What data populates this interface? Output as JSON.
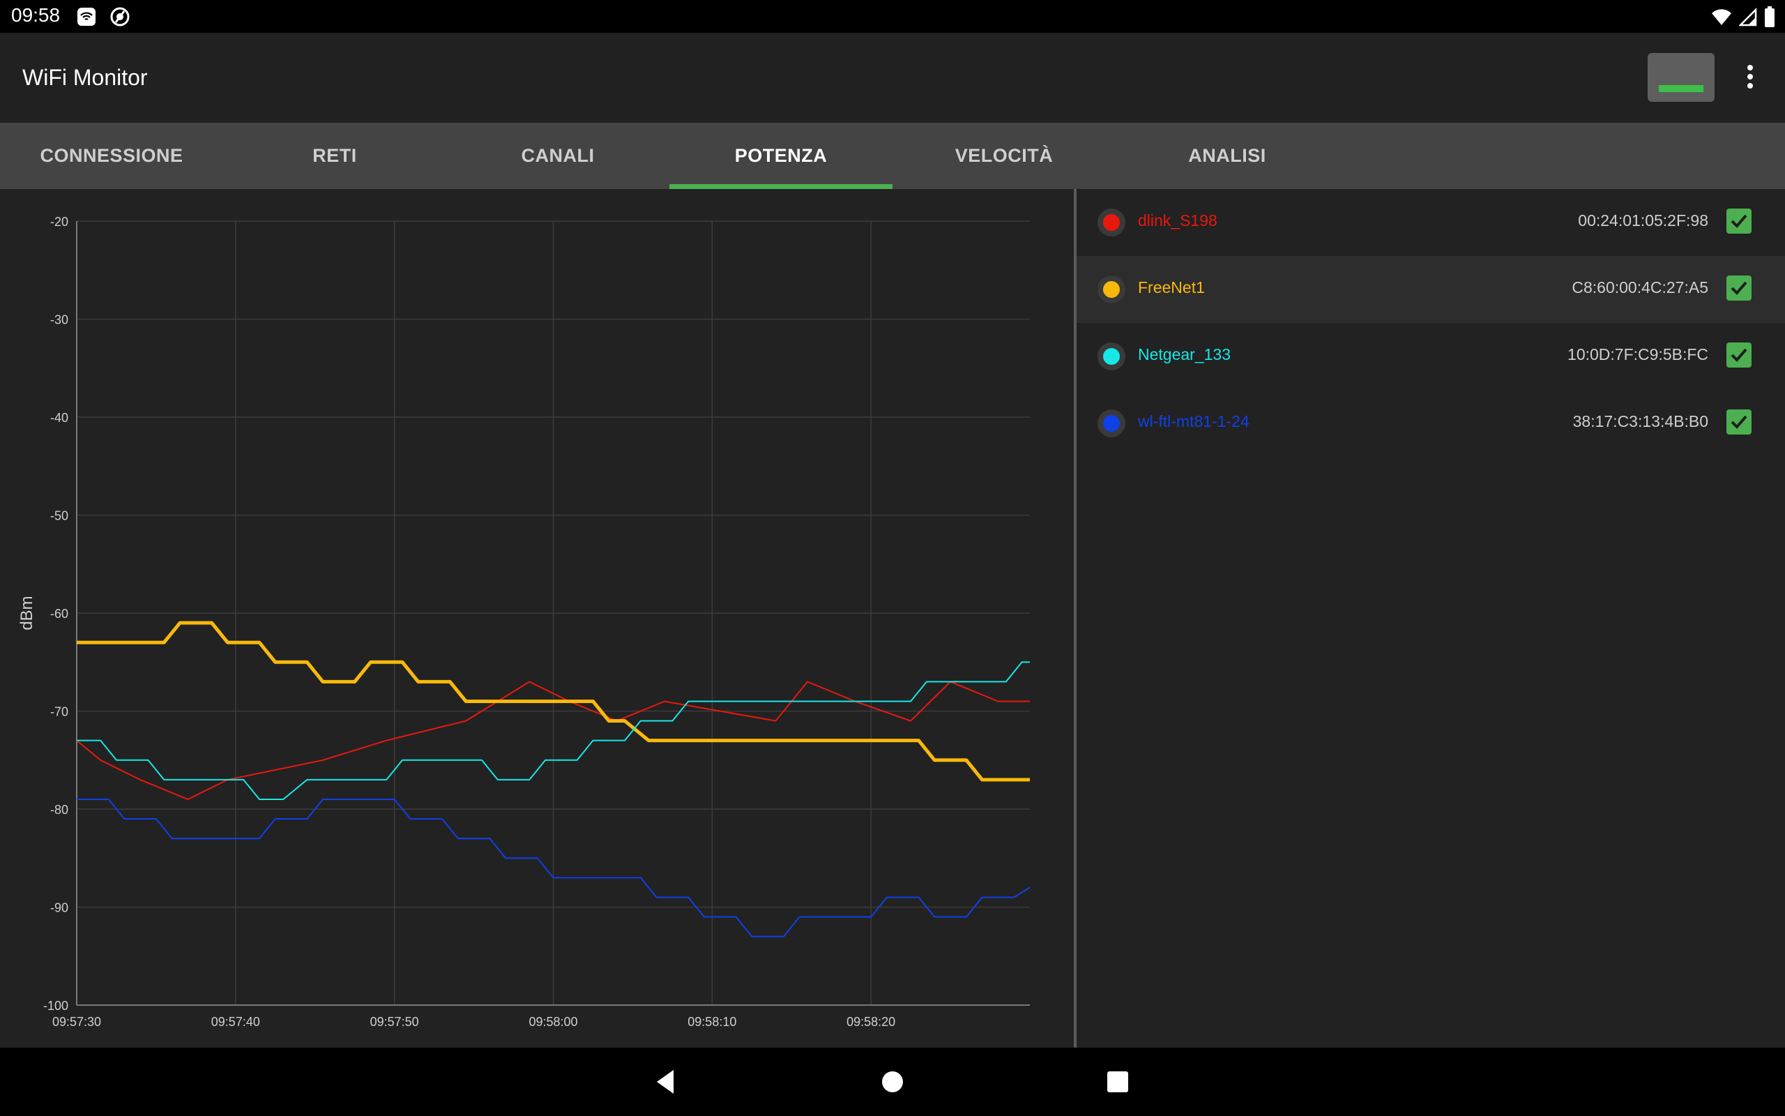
{
  "status_bar": {
    "time": "09:58"
  },
  "app_bar": {
    "title": "WiFi Monitor"
  },
  "tabs": [
    {
      "label": "CONNESSIONE"
    },
    {
      "label": "RETI"
    },
    {
      "label": "CANALI"
    },
    {
      "label": "POTENZA",
      "active": true
    },
    {
      "label": "VELOCITÀ"
    },
    {
      "label": "ANALISI"
    }
  ],
  "networks": [
    {
      "name": "dlink_S198",
      "mac": "00:24:01:05:2F:98",
      "color": "#e8180e",
      "checked": true
    },
    {
      "name": "FreeNet1",
      "mac": "C8:60:00:4C:27:A5",
      "color": "#f8b90c",
      "checked": true
    },
    {
      "name": "Netgear_133",
      "mac": "10:0D:7F:C9:5B:FC",
      "color": "#16e8e8",
      "checked": true
    },
    {
      "name": "wl-ftl-mt81-1-24",
      "mac": "38:17:C3:13:4B:B0",
      "color": "#1040e8",
      "checked": true
    }
  ],
  "chart_data": {
    "type": "line",
    "ylabel": "dBm",
    "xlabel": "",
    "ylim": [
      -100,
      -20
    ],
    "yticks": [
      "-20",
      "-30",
      "-40",
      "-50",
      "-60",
      "-70",
      "-80",
      "-90",
      "-100"
    ],
    "xticks": [
      "09:57:30",
      "09:57:40",
      "09:57:50",
      "09:58:00",
      "09:58:10",
      "09:58:20"
    ],
    "grid": true,
    "series": [
      {
        "name": "dlink_S198",
        "color": "#e8180e",
        "width": 2,
        "points": [
          [
            0,
            -73
          ],
          [
            1.5,
            -75
          ],
          [
            4,
            -77
          ],
          [
            7,
            -79
          ],
          [
            9.5,
            -77
          ],
          [
            15.5,
            -75
          ],
          [
            19.5,
            -73
          ],
          [
            24.5,
            -71
          ],
          [
            28.5,
            -67
          ],
          [
            31,
            -69
          ],
          [
            34,
            -71
          ],
          [
            37,
            -69
          ],
          [
            44,
            -71
          ],
          [
            46,
            -67
          ],
          [
            49,
            -69
          ],
          [
            52.5,
            -71
          ],
          [
            55,
            -67
          ],
          [
            58,
            -69
          ],
          [
            60,
            -69
          ]
        ]
      },
      {
        "name": "FreeNet1",
        "color": "#f8b90c",
        "width": 5,
        "points": [
          [
            0,
            -63
          ],
          [
            5.5,
            -63
          ],
          [
            6.5,
            -61
          ],
          [
            8.5,
            -61
          ],
          [
            9.5,
            -63
          ],
          [
            11.5,
            -63
          ],
          [
            12.5,
            -65
          ],
          [
            14.5,
            -65
          ],
          [
            15.5,
            -67
          ],
          [
            17.5,
            -67
          ],
          [
            18.5,
            -65
          ],
          [
            20.5,
            -65
          ],
          [
            21.5,
            -67
          ],
          [
            23.5,
            -67
          ],
          [
            24.5,
            -69
          ],
          [
            32.5,
            -69
          ],
          [
            33.5,
            -71
          ],
          [
            34.5,
            -71
          ],
          [
            36,
            -73
          ],
          [
            53,
            -73
          ],
          [
            54,
            -75
          ],
          [
            56,
            -75
          ],
          [
            57,
            -77
          ],
          [
            60,
            -77
          ]
        ]
      },
      {
        "name": "Netgear_133",
        "color": "#16e8e8",
        "width": 2,
        "points": [
          [
            0,
            -73
          ],
          [
            1.5,
            -73
          ],
          [
            2.5,
            -75
          ],
          [
            4.5,
            -75
          ],
          [
            5.5,
            -77
          ],
          [
            10.5,
            -77
          ],
          [
            11.5,
            -79
          ],
          [
            13,
            -79
          ],
          [
            14.5,
            -77
          ],
          [
            19.5,
            -77
          ],
          [
            20.5,
            -75
          ],
          [
            25.5,
            -75
          ],
          [
            26.5,
            -77
          ],
          [
            28.5,
            -77
          ],
          [
            29.5,
            -75
          ],
          [
            31.5,
            -75
          ],
          [
            32.5,
            -73
          ],
          [
            34.5,
            -73
          ],
          [
            35.5,
            -71
          ],
          [
            37.5,
            -71
          ],
          [
            38.5,
            -69
          ],
          [
            52.5,
            -69
          ],
          [
            53.5,
            -67
          ],
          [
            58.5,
            -67
          ],
          [
            59.5,
            -65
          ],
          [
            60,
            -65
          ]
        ]
      },
      {
        "name": "wl-ftl-mt81-1-24",
        "color": "#1040e8",
        "width": 2,
        "points": [
          [
            0,
            -79
          ],
          [
            2,
            -79
          ],
          [
            3,
            -81
          ],
          [
            5,
            -81
          ],
          [
            6,
            -83
          ],
          [
            11.5,
            -83
          ],
          [
            12.5,
            -81
          ],
          [
            14.5,
            -81
          ],
          [
            15.5,
            -79
          ],
          [
            20,
            -79
          ],
          [
            21,
            -81
          ],
          [
            23,
            -81
          ],
          [
            24,
            -83
          ],
          [
            26,
            -83
          ],
          [
            27,
            -85
          ],
          [
            29,
            -85
          ],
          [
            30,
            -87
          ],
          [
            35.5,
            -87
          ],
          [
            36.5,
            -89
          ],
          [
            38.5,
            -89
          ],
          [
            39.5,
            -91
          ],
          [
            41.5,
            -91
          ],
          [
            42.5,
            -93
          ],
          [
            44.5,
            -93
          ],
          [
            45.5,
            -91
          ],
          [
            50,
            -91
          ],
          [
            51,
            -89
          ],
          [
            53,
            -89
          ],
          [
            54,
            -91
          ],
          [
            56,
            -91
          ],
          [
            57,
            -89
          ],
          [
            59,
            -89
          ],
          [
            60,
            -88
          ]
        ]
      }
    ]
  }
}
